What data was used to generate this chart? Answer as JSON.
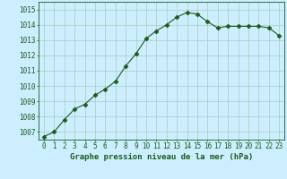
{
  "x": [
    0,
    1,
    2,
    3,
    4,
    5,
    6,
    7,
    8,
    9,
    10,
    11,
    12,
    13,
    14,
    15,
    16,
    17,
    18,
    19,
    20,
    21,
    22,
    23
  ],
  "y": [
    1006.7,
    1007.0,
    1007.8,
    1008.5,
    1008.8,
    1009.4,
    1009.8,
    1010.3,
    1011.3,
    1012.1,
    1013.1,
    1013.6,
    1014.0,
    1014.5,
    1014.8,
    1014.7,
    1014.2,
    1013.8,
    1013.9,
    1013.9,
    1013.9,
    1013.9,
    1013.8,
    1013.3
  ],
  "line_color": "#1a5c1a",
  "marker": "D",
  "marker_size": 2.5,
  "bg_color": "#cceeff",
  "grid_color": "#aaccbb",
  "xlabel": "Graphe pression niveau de la mer (hPa)",
  "ylabel_ticks": [
    1007,
    1008,
    1009,
    1010,
    1011,
    1012,
    1013,
    1014,
    1015
  ],
  "xtick_labels": [
    "0",
    "1",
    "2",
    "3",
    "4",
    "5",
    "6",
    "7",
    "8",
    "9",
    "10",
    "11",
    "12",
    "13",
    "14",
    "15",
    "16",
    "17",
    "18",
    "19",
    "20",
    "21",
    "22",
    "23"
  ],
  "ylim": [
    1006.5,
    1015.5
  ],
  "xlim": [
    -0.5,
    23.5
  ],
  "xlabel_fontsize": 6.5,
  "tick_fontsize": 5.5
}
